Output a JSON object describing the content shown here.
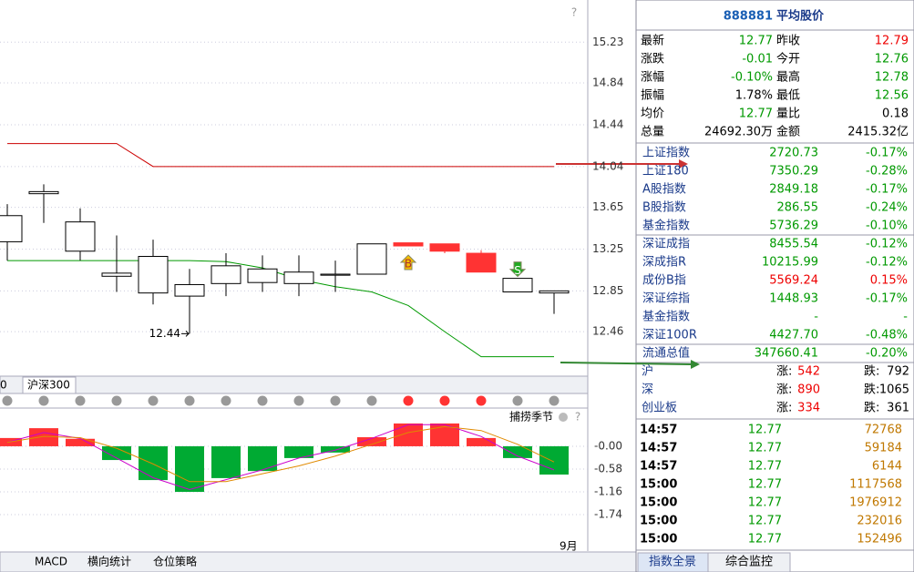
{
  "chart_data": [
    {
      "type": "candlestick",
      "open": [
        13.32,
        13.78,
        13.23,
        12.99,
        12.83,
        12.8,
        12.92,
        12.93,
        12.92,
        13.0,
        13.01,
        13.31,
        13.3,
        13.21,
        12.84,
        12.83
      ],
      "high": [
        13.68,
        13.87,
        13.64,
        13.38,
        13.34,
        13.06,
        13.21,
        13.19,
        13.19,
        13.14,
        13.3,
        13.31,
        13.3,
        13.24,
        12.97,
        12.85
      ],
      "low": [
        13.14,
        13.5,
        13.14,
        12.84,
        12.72,
        12.44,
        12.8,
        12.84,
        12.8,
        12.84,
        13.01,
        13.28,
        13.21,
        13.03,
        12.84,
        12.63
      ],
      "close": [
        13.57,
        13.8,
        13.51,
        13.02,
        13.18,
        12.91,
        13.09,
        13.06,
        13.03,
        13.01,
        13.3,
        13.28,
        13.23,
        13.03,
        12.97,
        12.85
      ],
      "up_color": "#000000",
      "down_color": "#ff3333",
      "lines": [
        {
          "color": "#cc0000",
          "values": [
            14.26,
            14.26,
            14.26,
            14.26,
            14.04,
            14.04,
            14.04,
            14.04,
            14.04,
            14.04,
            14.04,
            14.04,
            14.04,
            14.04,
            14.04,
            14.04
          ]
        },
        {
          "color": "#009900",
          "values": [
            13.14,
            13.14,
            13.14,
            13.14,
            13.14,
            13.14,
            13.13,
            13.07,
            12.96,
            12.89,
            12.84,
            12.71,
            12.46,
            12.22,
            12.22,
            12.22
          ]
        }
      ],
      "annotation": "12.44",
      "signals": [
        {
          "index": 11,
          "label": "B",
          "color": "#f5c000"
        },
        {
          "index": 14,
          "label": "S",
          "color": "#22aa22"
        }
      ],
      "ylim": [
        12.06,
        15.59
      ],
      "yticks": [
        15.23,
        14.84,
        14.44,
        14.04,
        13.65,
        13.25,
        12.85,
        12.46
      ],
      "grid": true
    },
    {
      "type": "bar",
      "values": [
        0.21,
        0.46,
        0.19,
        -0.35,
        -0.86,
        -1.16,
        -0.81,
        -0.63,
        -0.3,
        -0.16,
        0.23,
        0.58,
        0.58,
        0.21,
        -0.3,
        -0.72
      ],
      "up_color": "#ff3333",
      "down_color": "#00aa33",
      "series": [
        {
          "color": "#cc00cc",
          "values": [
            0.1,
            0.35,
            0.2,
            -0.3,
            -0.8,
            -1.1,
            -0.85,
            -0.6,
            -0.3,
            -0.1,
            0.2,
            0.55,
            0.55,
            0.25,
            -0.25,
            -0.6
          ]
        },
        {
          "color": "#e08a00",
          "values": [
            0.1,
            0.25,
            0.22,
            -0.05,
            -0.45,
            -0.9,
            -0.9,
            -0.7,
            -0.5,
            -0.25,
            0.05,
            0.35,
            0.5,
            0.4,
            0.05,
            -0.4
          ]
        }
      ],
      "ylim": [
        -2.55,
        0.81
      ],
      "yticks": [
        {
          "value": 0,
          "label": "-0.00"
        },
        -0.58,
        -1.16,
        -1.74
      ],
      "grid": true,
      "name": "捕捞季节"
    }
  ],
  "signal_dots": [
    "#999999",
    "#999999",
    "#999999",
    "#999999",
    "#999999",
    "#999999",
    "#999999",
    "#999999",
    "#999999",
    "#999999",
    "#999999",
    "#ff3333",
    "#ff3333",
    "#ff3333",
    "#999999",
    "#999999"
  ],
  "help": "?",
  "tabs_top": [
    "0",
    "沪深300"
  ],
  "tabs_bottom": [
    "MACD",
    "横向统计",
    "仓位策略"
  ],
  "month": "9月",
  "header": {
    "code": "888881",
    "name": "平均股价"
  },
  "quote": [
    {
      "l1": "最新",
      "v1": "12.77",
      "c1": "#009900",
      "l2": "昨收",
      "v2": "12.79",
      "c2": "#ee0000"
    },
    {
      "l1": "涨跌",
      "v1": "-0.01",
      "c1": "#009900",
      "l2": "今开",
      "v2": "12.76",
      "c2": "#009900"
    },
    {
      "l1": "涨幅",
      "v1": "-0.10%",
      "c1": "#009900",
      "l2": "最高",
      "v2": "12.78",
      "c2": "#009900"
    },
    {
      "l1": "振幅",
      "v1": "1.78%",
      "c1": "#000000",
      "l2": "最低",
      "v2": "12.56",
      "c2": "#009900"
    },
    {
      "l1": "均价",
      "v1": "12.77",
      "c1": "#009900",
      "l2": "量比",
      "v2": "0.18",
      "c2": "#000000"
    },
    {
      "l1": "总量",
      "v1": "24692.30万",
      "c1": "#000000",
      "l2": "金额",
      "v2": "2415.32亿",
      "c2": "#000000"
    }
  ],
  "indices": [
    [
      {
        "name": "上证指数",
        "value": "2720.73",
        "change": "-0.17%",
        "color": "#009900"
      },
      {
        "name": "上证180",
        "value": "7350.29",
        "change": "-0.28%",
        "color": "#009900"
      },
      {
        "name": "A股指数",
        "value": "2849.18",
        "change": "-0.17%",
        "color": "#009900"
      },
      {
        "name": "B股指数",
        "value": "286.55",
        "change": "-0.24%",
        "color": "#009900"
      },
      {
        "name": "基金指数",
        "value": "5736.29",
        "change": "-0.10%",
        "color": "#009900"
      }
    ],
    [
      {
        "name": "深证成指",
        "value": "8455.54",
        "change": "-0.12%",
        "color": "#009900"
      },
      {
        "name": "深成指R",
        "value": "10215.99",
        "change": "-0.12%",
        "color": "#009900"
      },
      {
        "name": "成份B指",
        "value": "5569.24",
        "change": "0.15%",
        "color": "#ee0000"
      },
      {
        "name": "深证综指",
        "value": "1448.93",
        "change": "-0.17%",
        "color": "#009900"
      },
      {
        "name": "基金指数",
        "value": "-",
        "change": "-",
        "color": "#009900"
      },
      {
        "name": "深证100R",
        "value": "4427.70",
        "change": "-0.48%",
        "color": "#009900"
      }
    ],
    [
      {
        "name": "流通总值",
        "value": "347660.41",
        "change": "-0.20%",
        "color": "#009900"
      }
    ]
  ],
  "breadth": [
    {
      "market": "沪",
      "up_label": "涨:",
      "up": "542",
      "down_label": "跌:",
      "down": "792"
    },
    {
      "market": "深",
      "up_label": "涨:",
      "up": "890",
      "down_label": "跌:",
      "down": "1065"
    },
    {
      "market": "创业板",
      "up_label": "涨:",
      "up": "334",
      "down_label": "跌:",
      "down": "361"
    }
  ],
  "ticks": [
    {
      "time": "14:57",
      "price": "12.77",
      "volume": "72768"
    },
    {
      "time": "14:57",
      "price": "12.77",
      "volume": "59184"
    },
    {
      "time": "14:57",
      "price": "12.77",
      "volume": "6144"
    },
    {
      "time": "15:00",
      "price": "12.77",
      "volume": "1117568"
    },
    {
      "time": "15:00",
      "price": "12.77",
      "volume": "1976912"
    },
    {
      "time": "15:00",
      "price": "12.77",
      "volume": "232016"
    },
    {
      "time": "15:00",
      "price": "12.77",
      "volume": "152496"
    }
  ],
  "tick_colors": {
    "time": "#000000",
    "price": "#009900",
    "volume": "#c07800"
  },
  "right_tabs": [
    "指数全景",
    "综合监控"
  ]
}
